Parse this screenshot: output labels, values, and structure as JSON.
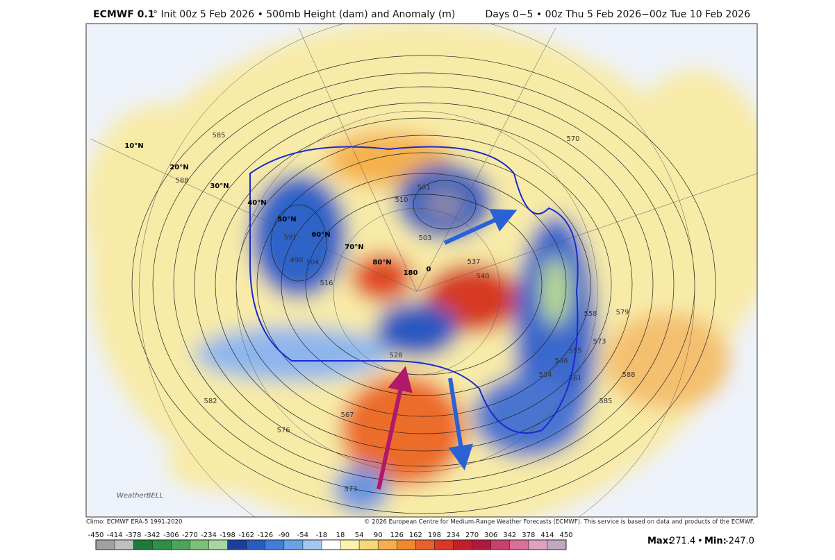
{
  "header": {
    "model": "ECMWF 0.1",
    "title": "° Init 00z 5 Feb 2026 • 500mb Height (dam) and Anomaly (m)",
    "period": "Days 0−5 • 00z Thu 5 Feb 2026−00z Tue 10 Feb 2026"
  },
  "map": {
    "lat_labels": [
      "10°N",
      "20°N",
      "30°N",
      "40°N",
      "50°N",
      "60°N",
      "70°N",
      "80°N",
      "180",
      "0"
    ],
    "contour_labels": [
      "585",
      "588",
      "576",
      "573",
      "567",
      "561",
      "555",
      "558",
      "546",
      "534",
      "528",
      "516",
      "510",
      "501",
      "503",
      "498",
      "591",
      "504",
      "537",
      "540",
      "570",
      "579",
      "588",
      "573",
      "585",
      "582"
    ],
    "logo": "WeatherBELL"
  },
  "footer": {
    "climo": "Climo: ECMWF ERA-5 1991-2020",
    "copyright": "© 2026 European Centre for Medium-Range Weather Forecasts (ECMWF). This service is based on data and products of the ECMWF.",
    "max_label": "Max:",
    "max": "271.4",
    "sep": "•",
    "min_label": "Min:",
    "min": "-247.0"
  },
  "colorbar": {
    "ticks": [
      -450,
      -414,
      -378,
      -342,
      -306,
      -270,
      -234,
      -198,
      -162,
      -126,
      -90,
      -54,
      -18,
      18,
      54,
      90,
      126,
      162,
      198,
      234,
      270,
      306,
      342,
      378,
      414,
      450
    ],
    "colors": [
      "#a0a0a0",
      "#c0c0c0",
      "#1e7b3a",
      "#2e8f47",
      "#4aa55a",
      "#7cc07a",
      "#a8d6a0",
      "#1c3f9e",
      "#2a5bc0",
      "#3f7fd8",
      "#6aa2e6",
      "#a3c7f0",
      "#ffffff",
      "#fbf2b0",
      "#f6d77c",
      "#f4b04e",
      "#f08a2e",
      "#e8602a",
      "#d93a24",
      "#c21f2a",
      "#b0183e",
      "#c8406e",
      "#d8709a",
      "#e0a0c0",
      "#c0a8c0"
    ]
  }
}
